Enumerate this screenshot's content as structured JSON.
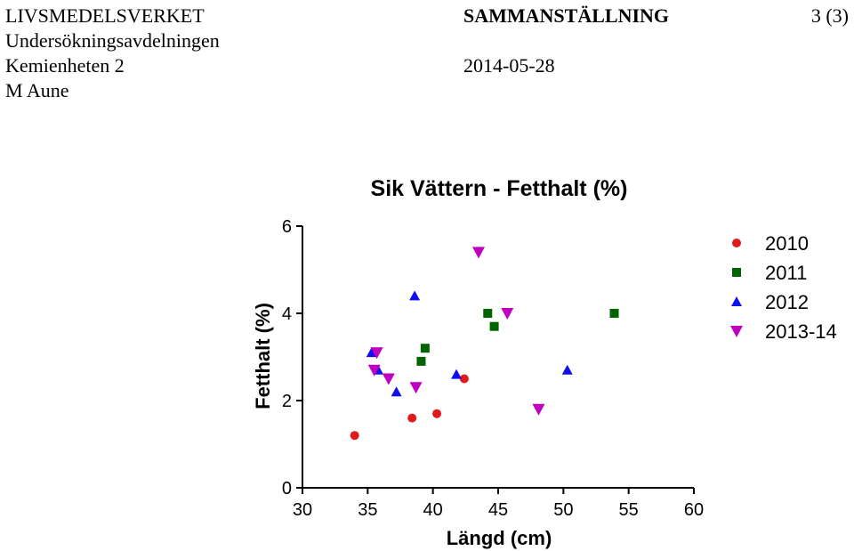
{
  "header": {
    "agency": "LIVSMEDELSVERKET",
    "department": "Undersökningsavdelningen",
    "unit": "Kemienheten 2",
    "author": "M Aune",
    "doc_type": "SAMMANSTÄLLNING",
    "page": "3 (3)",
    "date": "2014-05-28"
  },
  "chart_data": {
    "type": "scatter",
    "title": "Sik Vättern - Fetthalt (%)",
    "xlabel": "Längd (cm)",
    "ylabel": "Fetthalt (%)",
    "xlim": [
      30,
      60
    ],
    "ylim": [
      0,
      6
    ],
    "xticks": [
      30,
      35,
      40,
      45,
      50,
      55,
      60
    ],
    "yticks": [
      0,
      2,
      4,
      6
    ],
    "grid": false,
    "legend_position": "right",
    "series": [
      {
        "name": "2010",
        "marker": "circle",
        "color": "#e01b1b",
        "points": [
          [
            34,
            1.2
          ],
          [
            38.4,
            1.6
          ],
          [
            40.3,
            1.7
          ],
          [
            42.4,
            2.5
          ]
        ]
      },
      {
        "name": "2011",
        "marker": "square",
        "color": "#006400",
        "points": [
          [
            39.1,
            2.9
          ],
          [
            39.4,
            3.2
          ],
          [
            44.2,
            4.0
          ],
          [
            44.7,
            3.7
          ],
          [
            53.9,
            4.0
          ]
        ]
      },
      {
        "name": "2012",
        "marker": "triangle-up",
        "color": "#1010ee",
        "points": [
          [
            35.3,
            3.1
          ],
          [
            35.8,
            2.7
          ],
          [
            37.2,
            2.2
          ],
          [
            38.6,
            4.4
          ],
          [
            41.8,
            2.6
          ],
          [
            50.3,
            2.7
          ]
        ]
      },
      {
        "name": "2013-14",
        "marker": "triangle-down",
        "color": "#c000c0",
        "points": [
          [
            35.5,
            2.7
          ],
          [
            35.7,
            3.1
          ],
          [
            36.6,
            2.5
          ],
          [
            38.7,
            2.3
          ],
          [
            43.5,
            5.4
          ],
          [
            45.7,
            4.0
          ],
          [
            48.1,
            1.8
          ]
        ]
      }
    ]
  }
}
